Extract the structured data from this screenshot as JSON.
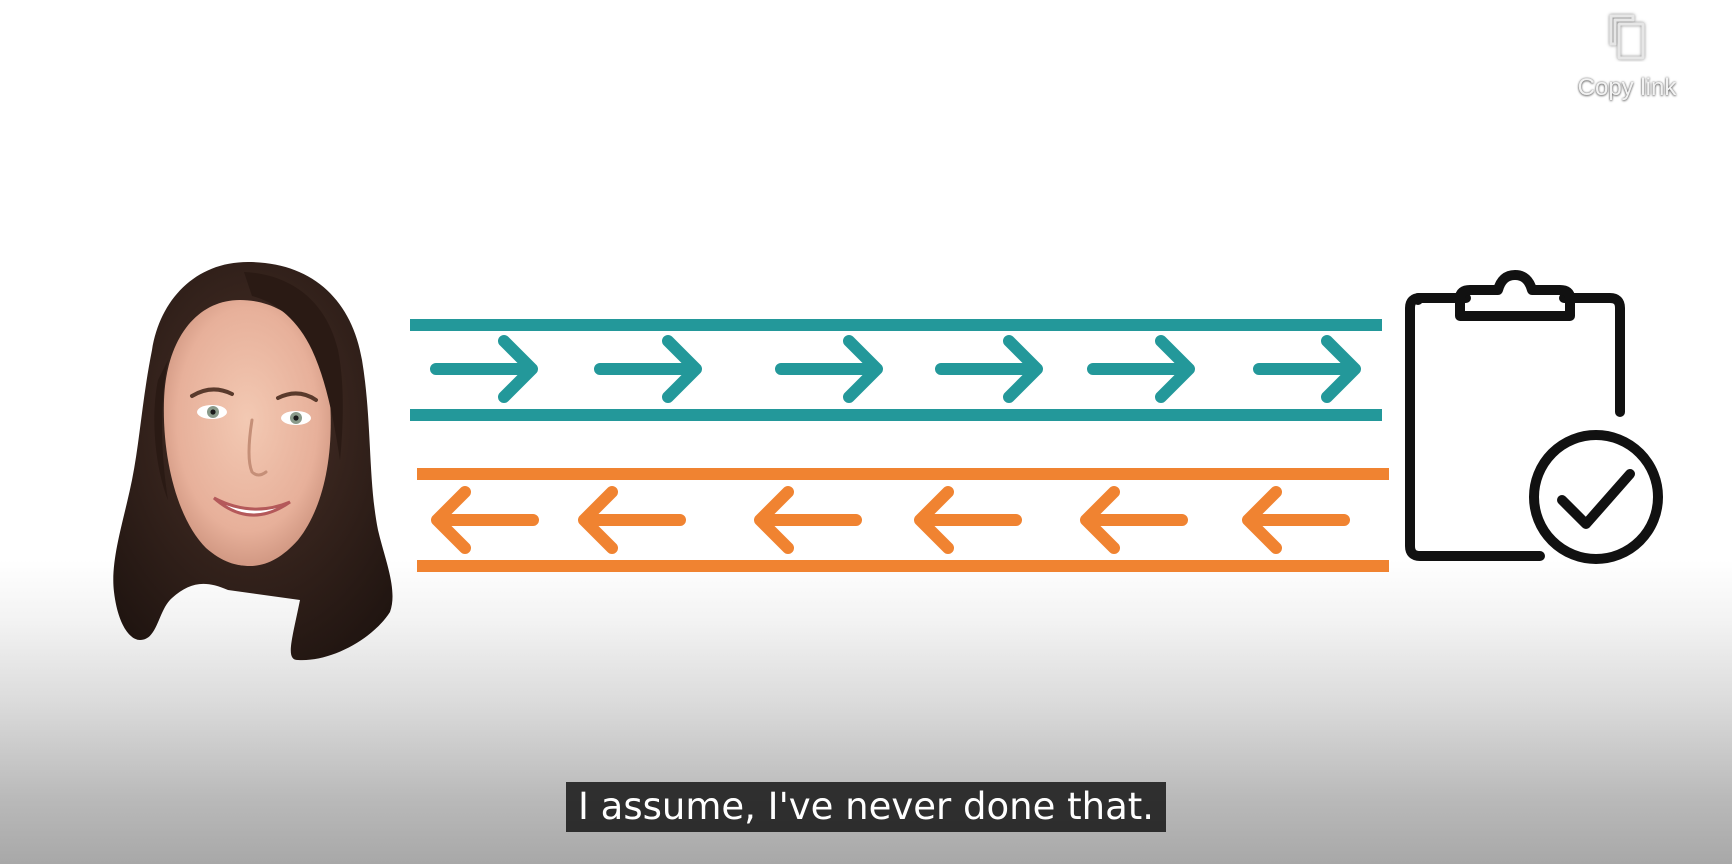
{
  "player": {
    "copy_link": {
      "label": "Copy link",
      "icon": "copy-icon"
    },
    "caption": {
      "text": "I assume, I've never done that."
    }
  },
  "slide": {
    "colors": {
      "outgoing": "#23989A",
      "incoming": "#F08331",
      "clipboard": "#111111"
    },
    "outgoing_arrows": {
      "direction": "right",
      "count": 6
    },
    "incoming_arrows": {
      "direction": "left",
      "count": 6
    },
    "icons": [
      "person-portrait",
      "clipboard-check-icon"
    ]
  }
}
